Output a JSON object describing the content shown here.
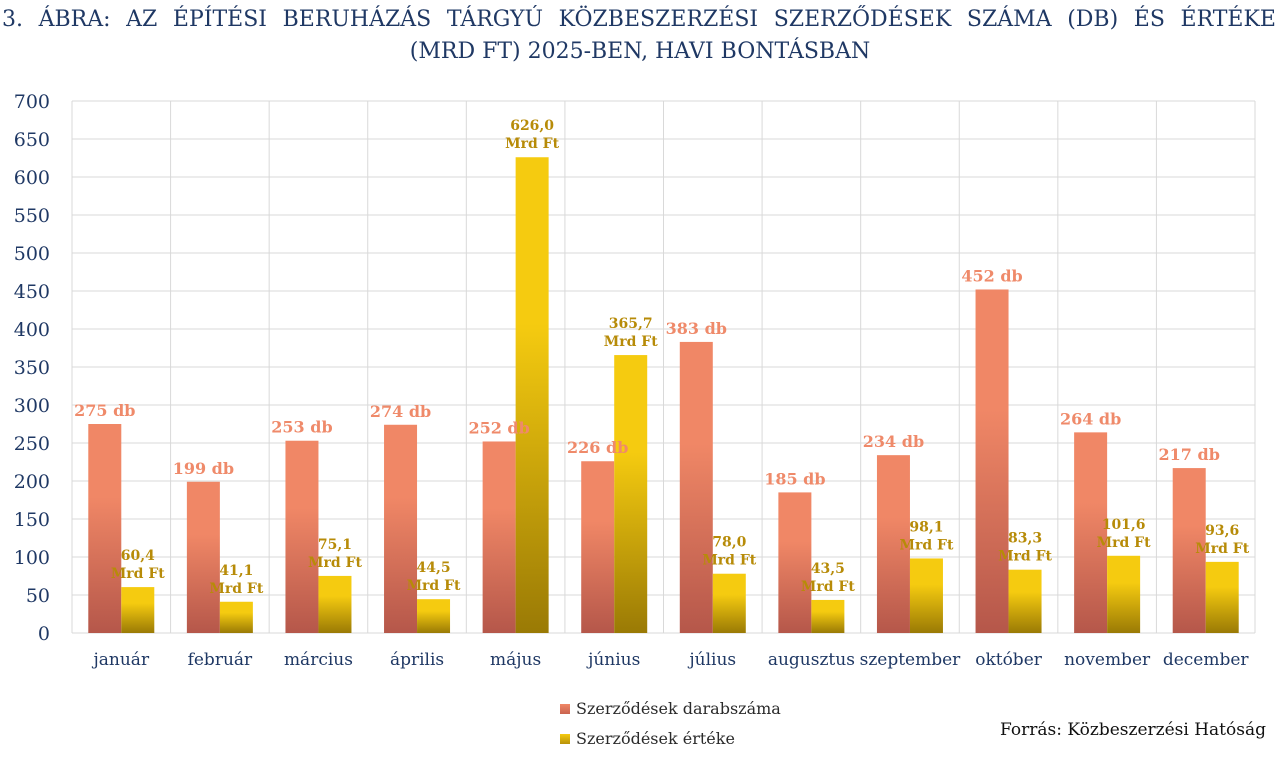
{
  "title": {
    "line1": "3.   ÁBRA: AZ ÉPÍTÉSI BERUHÁZÁS TÁRGYÚ KÖZBESZERZÉSI SZERZŐDÉSEK SZÁMA (DB) ÉS ÉRTÉKE",
    "line2": "(MRD FT) 2025-BEN, HAVI BONTÁSBAN"
  },
  "source": "Forrás: Közbeszerzési Hatóság",
  "legend": {
    "series1": "Szerződések darabszáma",
    "series2": "Szerződések értéke"
  },
  "colors": {
    "count_top": "#f08766",
    "count_bottom": "#b5574a",
    "value_top": "#f5cb10",
    "value_bottom": "#9a7a05",
    "count_label": "#ef8a6a",
    "value_label": "#b78b08",
    "axis_text": "#1f3864",
    "grid": "#d9d9d9"
  },
  "chart_data": {
    "type": "bar",
    "categories": [
      "január",
      "február",
      "március",
      "április",
      "május",
      "június",
      "július",
      "augusztus",
      "szeptember",
      "október",
      "november",
      "december"
    ],
    "ylim": [
      0,
      700
    ],
    "yticks": [
      0,
      50,
      100,
      150,
      200,
      250,
      300,
      350,
      400,
      450,
      500,
      550,
      600,
      650,
      700
    ],
    "grid": true,
    "legend_position": "bottom",
    "series": [
      {
        "name": "Szerződések darabszáma",
        "values": [
          275,
          199,
          253,
          274,
          252,
          226,
          383,
          185,
          234,
          452,
          264,
          217
        ],
        "labels": [
          "275 db",
          "199 db",
          "253 db",
          "274 db",
          "252 db",
          "226 db",
          "383 db",
          "185 db",
          "234 db",
          "452 db",
          "264 db",
          "217 db"
        ]
      },
      {
        "name": "Szerződések értéke",
        "values": [
          60.4,
          41.1,
          75.1,
          44.5,
          626.0,
          365.7,
          78.0,
          43.5,
          98.1,
          83.3,
          101.6,
          93.6
        ],
        "labels": [
          "60,4",
          "41,1",
          "75,1",
          "44,5",
          "626,0",
          "365,7",
          "78,0",
          "43,5",
          "98,1",
          "83,3",
          "101,6",
          "93,6"
        ],
        "unit_label": "Mrd Ft"
      }
    ]
  }
}
